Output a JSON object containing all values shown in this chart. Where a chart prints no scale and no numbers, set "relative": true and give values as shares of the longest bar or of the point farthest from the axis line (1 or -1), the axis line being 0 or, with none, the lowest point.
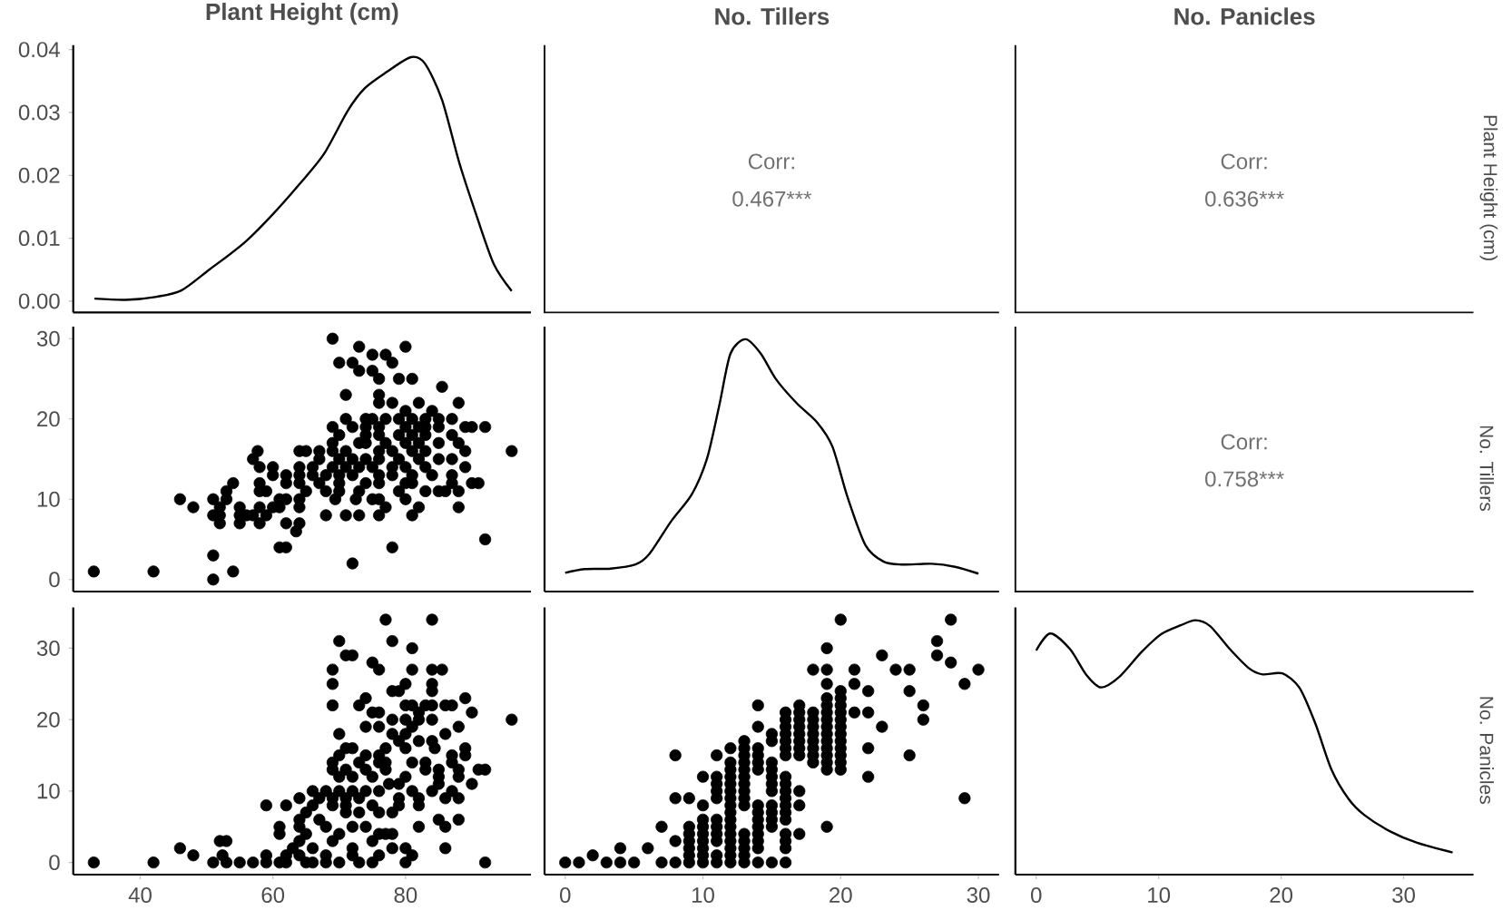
{
  "chart_data": [
    {
      "type": "line",
      "title": "Plant Height (cm)",
      "color": "#000000",
      "xlim": [
        29.9,
        98.9
      ],
      "ylim": [
        -0.0018,
        0.0407
      ],
      "tick_labels": "y",
      "yticks": [
        {
          "value": 0,
          "label": "0.00"
        },
        0.01,
        0.02,
        0.03,
        0.04
      ],
      "x": [
        33.1,
        37.8,
        42.5,
        46.2,
        50.4,
        55.6,
        59.8,
        64.0,
        67.7,
        71.3,
        73.9,
        77.1,
        80.8,
        82.9,
        85.5,
        88.1,
        90.7,
        93.3,
        96.0
      ],
      "values": [
        0.0004,
        0.0002,
        0.0007,
        0.0017,
        0.005,
        0.0092,
        0.0136,
        0.0186,
        0.0234,
        0.0303,
        0.0339,
        0.0364,
        0.0388,
        0.0378,
        0.032,
        0.022,
        0.0136,
        0.0059,
        0.0016
      ]
    },
    {
      "type": "other",
      "title": "No. Tillers",
      "annotations": [
        "Corr:",
        "0.467***"
      ]
    },
    {
      "type": "other",
      "title": "No. Panicles",
      "annotations": [
        "Corr:",
        "0.636***"
      ],
      "y2label": "Plant Height (cm)"
    },
    {
      "type": "scatter",
      "color": "#000000",
      "marker": "circle",
      "xlim": [
        29.9,
        98.9
      ],
      "ylim": [
        -1.5,
        31.5
      ],
      "yticks": [
        0,
        10,
        20,
        30
      ],
      "tick_labels": "y",
      "x": [
        69,
        73,
        80,
        75,
        77,
        70,
        72,
        78,
        73,
        75,
        76,
        79,
        81,
        85.5,
        71,
        76,
        76,
        78,
        82,
        88,
        80,
        84,
        71,
        74,
        75,
        77,
        79,
        81,
        83,
        85,
        87,
        69,
        72,
        74,
        76,
        80,
        82,
        83,
        85,
        89,
        90,
        92,
        70,
        74,
        76,
        79,
        81,
        83,
        87,
        69,
        73,
        74,
        77,
        80,
        82,
        85,
        88,
        57.7,
        64,
        65,
        67,
        69,
        71,
        76,
        78,
        81,
        83,
        89,
        96,
        57,
        67,
        70,
        72,
        74,
        76,
        79,
        82,
        85,
        87,
        58,
        60,
        64,
        66,
        69,
        71,
        73,
        75,
        78,
        80,
        83,
        89,
        60,
        62,
        64,
        66,
        68,
        70,
        72,
        76,
        78,
        81,
        84,
        87,
        54,
        58,
        62,
        64,
        67,
        70,
        74,
        76,
        80,
        81,
        87,
        90,
        91,
        53,
        58,
        59,
        65,
        68,
        70,
        73,
        79,
        83,
        85,
        86,
        88,
        46,
        51,
        53,
        61,
        62,
        64,
        69.4,
        72.5,
        75,
        76,
        80,
        48,
        52,
        55,
        58,
        60,
        61,
        64,
        77,
        82,
        88,
        51,
        52,
        55,
        56,
        57,
        59,
        68,
        71,
        73,
        76,
        81,
        52,
        55,
        58,
        62,
        64,
        63.5,
        92,
        61,
        62,
        78,
        51,
        72,
        33,
        42,
        54,
        51
      ],
      "values": [
        30,
        29,
        29,
        28,
        28,
        27,
        27,
        27,
        26,
        26,
        25,
        25,
        25,
        24,
        23,
        23,
        22,
        22,
        22,
        22,
        21,
        21,
        20,
        20,
        20,
        20,
        20,
        20,
        20,
        20,
        20,
        19,
        19,
        19,
        19,
        19,
        19,
        19,
        19,
        19,
        19,
        19,
        18,
        18,
        18,
        18,
        18,
        18,
        18,
        17,
        17,
        17,
        17,
        17,
        17,
        17,
        17,
        16,
        16,
        16,
        16,
        16,
        16,
        16,
        16,
        16,
        16,
        16,
        16,
        15,
        15,
        15,
        15,
        15,
        15,
        15,
        15,
        15,
        15,
        14,
        14,
        14,
        14,
        14,
        14,
        14,
        14,
        14,
        14,
        14,
        14,
        13,
        13,
        13,
        13,
        13,
        13,
        13,
        13,
        13,
        13,
        13,
        13,
        12,
        12,
        12,
        12,
        12,
        12,
        12,
        12,
        12,
        12,
        12,
        12,
        12,
        11,
        11,
        11,
        11,
        11,
        11,
        11,
        11,
        11,
        11,
        11,
        11,
        10,
        10,
        10,
        10,
        10,
        10,
        10,
        10,
        10,
        10,
        10,
        9,
        9,
        9,
        9,
        9,
        9,
        9,
        9,
        9,
        9,
        8,
        8,
        8,
        8,
        8,
        8,
        8,
        8,
        8,
        8,
        8,
        7,
        7,
        7,
        7,
        7,
        6,
        5,
        4,
        4,
        4,
        3,
        2,
        1,
        1,
        1,
        0
      ]
    },
    {
      "type": "line",
      "relative": true,
      "color": "#000000",
      "xlim": [
        -1.5,
        31.5
      ],
      "tick_labels": false,
      "x": [
        0,
        1.4,
        3.3,
        5.1,
        6.1,
        7.7,
        9.2,
        10.3,
        11.2,
        12.0,
        13.1,
        14.2,
        15.3,
        16.8,
        18.3,
        19.4,
        20.5,
        21.8,
        23.1,
        24.4,
        26.6,
        28.3,
        30.0
      ],
      "values": [
        0.074,
        0.089,
        0.091,
        0.107,
        0.148,
        0.279,
        0.386,
        0.528,
        0.741,
        0.943,
        1.0,
        0.943,
        0.842,
        0.747,
        0.67,
        0.575,
        0.374,
        0.184,
        0.119,
        0.107,
        0.11,
        0.098,
        0.071
      ]
    },
    {
      "type": "other",
      "annotations": [
        "Corr:",
        "0.758***"
      ],
      "y2label": "No. Tillers"
    },
    {
      "type": "scatter",
      "color": "#000000",
      "marker": "circle",
      "xlim": [
        29.9,
        98.9
      ],
      "ylim": [
        -1.7,
        35.7
      ],
      "xticks": [
        40,
        60,
        80
      ],
      "yticks": [
        0,
        10,
        20,
        30
      ],
      "x": [
        77,
        84,
        70,
        78,
        81,
        71,
        72,
        75,
        69,
        76,
        81,
        84,
        85.5,
        69,
        80,
        84,
        78,
        79,
        84,
        74,
        89,
        69,
        73,
        80,
        81,
        83,
        84,
        86,
        87,
        75,
        76,
        82,
        90,
        78,
        80,
        82,
        84,
        96,
        74,
        76,
        81,
        88,
        70,
        78,
        80,
        86,
        79,
        82,
        84,
        71,
        72,
        77,
        80,
        84.4,
        89,
        70,
        74,
        76,
        87,
        89,
        69,
        73,
        76,
        77,
        81,
        83,
        87,
        69,
        71,
        74,
        77,
        83,
        85,
        88,
        91,
        92,
        70,
        72,
        75,
        80,
        85,
        88,
        77.5,
        79,
        85,
        90,
        66,
        68,
        70,
        72,
        74,
        76,
        81,
        84,
        87,
        64,
        67,
        69,
        71,
        73,
        79,
        82,
        86,
        88,
        59,
        62,
        66,
        69,
        71,
        75,
        79,
        82,
        65,
        71,
        73,
        76,
        78,
        64,
        67,
        85,
        88,
        61,
        64,
        68,
        72,
        74,
        82,
        86,
        61,
        65,
        70,
        76,
        77,
        78,
        52,
        53,
        64,
        69,
        75,
        46,
        63,
        66,
        72,
        78,
        80,
        86,
        48,
        52.4,
        59,
        62,
        64,
        68,
        72,
        76,
        81,
        33,
        42,
        51,
        53,
        55,
        57,
        59,
        61,
        62,
        65,
        66,
        68,
        70,
        73,
        75,
        80,
        92
      ],
      "values": [
        34,
        34,
        31,
        31,
        30,
        29,
        29,
        28,
        27,
        27,
        27,
        27,
        27,
        25,
        25,
        25,
        24,
        24,
        24,
        23,
        23,
        22,
        22,
        22,
        22,
        22,
        22,
        22,
        22,
        21,
        21,
        21,
        21,
        20,
        20,
        20,
        20,
        20,
        19,
        19,
        19,
        19,
        18,
        18,
        18,
        18,
        17,
        17,
        17,
        16,
        16,
        16,
        16,
        16,
        16,
        15,
        15,
        15,
        15,
        15,
        14,
        14,
        14,
        14,
        14,
        14,
        14,
        13,
        13,
        13,
        13,
        13,
        13,
        13,
        13,
        13,
        12,
        12,
        12,
        12,
        12,
        12,
        11,
        11,
        11,
        11,
        10,
        10,
        10,
        10,
        10,
        10,
        10,
        10,
        10,
        9,
        9,
        9,
        9,
        9,
        9,
        9,
        9,
        9,
        8,
        8,
        8,
        8,
        8,
        8,
        8,
        8,
        7,
        7,
        7,
        7,
        7,
        6,
        6,
        6,
        6,
        5,
        5,
        5,
        5,
        5,
        5,
        5,
        4,
        4,
        4,
        4,
        4,
        4,
        3,
        3,
        3,
        3,
        3,
        2,
        2,
        2,
        2,
        2,
        2,
        2,
        1,
        1,
        1,
        1,
        1,
        1,
        1,
        1,
        1,
        0,
        0,
        0,
        0,
        0,
        0,
        0,
        0,
        0,
        0,
        0,
        0,
        0,
        0,
        0,
        0,
        0
      ]
    },
    {
      "type": "scatter",
      "color": "#000000",
      "marker": "circle",
      "xlim": [
        -1.5,
        31.5
      ],
      "ylim": [
        -1.7,
        35.7
      ],
      "xticks": [
        0,
        10,
        20,
        30
      ],
      "tick_labels": "x",
      "x": [
        0,
        1,
        2,
        3,
        4,
        4,
        5,
        6,
        7,
        7,
        8,
        8,
        8,
        8,
        9,
        9,
        9,
        9,
        9,
        9,
        9,
        10,
        10,
        10,
        10,
        10,
        10,
        10,
        10,
        10,
        11,
        11,
        11,
        11,
        11,
        11,
        11,
        11,
        11,
        11,
        11,
        12,
        12,
        12,
        12,
        12,
        12,
        12,
        12,
        12,
        12,
        12,
        12,
        12,
        12,
        12,
        12,
        13,
        13,
        13,
        13,
        13,
        13,
        13,
        13,
        13,
        13,
        13,
        13,
        13,
        13,
        13,
        14,
        14,
        14,
        14,
        14,
        14,
        14,
        14,
        14,
        14,
        14,
        14,
        14,
        14,
        15,
        15,
        15,
        15,
        15,
        15,
        15,
        15,
        15,
        15,
        15,
        15,
        16,
        16,
        16,
        16,
        16,
        16,
        16,
        16,
        16,
        16,
        16,
        16,
        16,
        16,
        16,
        16,
        16,
        16,
        17,
        17,
        17,
        17,
        17,
        17,
        17,
        17,
        17,
        17,
        17,
        18,
        18,
        18,
        18,
        18,
        18,
        18,
        18,
        18,
        19,
        19,
        19,
        19,
        19,
        19,
        19,
        19,
        19,
        19,
        19,
        19,
        19,
        19,
        19,
        20,
        20,
        20,
        20,
        20,
        20,
        20,
        20,
        20,
        20,
        20,
        20,
        20,
        21,
        21,
        21,
        22,
        22,
        22,
        22,
        23,
        23,
        24,
        25,
        25,
        25,
        26,
        26,
        27,
        27,
        28,
        28,
        29,
        29,
        30
      ],
      "values": [
        0,
        0,
        1,
        0,
        0,
        2,
        0,
        2,
        0,
        5,
        0,
        3,
        9,
        15,
        0,
        1,
        2,
        3,
        4,
        5,
        9,
        0,
        1,
        2,
        3,
        4,
        5,
        6,
        8,
        12,
        0,
        1,
        3,
        4,
        5,
        6,
        9,
        10,
        11,
        12,
        15,
        0,
        1,
        2,
        3,
        4,
        5,
        6,
        7,
        8,
        9,
        10,
        11,
        12,
        13,
        14,
        16,
        0,
        1,
        2,
        3,
        4,
        8,
        9,
        10,
        11,
        12,
        13,
        14,
        15,
        16,
        17,
        0,
        2,
        3,
        4,
        5,
        6,
        7,
        8,
        13,
        14,
        15,
        16,
        19,
        22,
        0,
        5,
        6,
        7,
        8,
        10,
        11,
        12,
        13,
        14,
        17,
        18,
        0,
        2,
        3,
        4,
        6,
        7,
        8,
        9,
        10,
        11,
        12,
        15,
        16,
        17,
        18,
        19,
        20,
        21,
        4,
        8,
        10,
        15,
        16,
        17,
        18,
        19,
        20,
        21,
        22,
        14,
        15,
        16,
        17,
        18,
        19,
        20,
        21,
        27,
        5,
        13,
        14,
        15,
        16,
        17,
        18,
        19,
        20,
        21,
        22,
        23,
        25,
        27,
        30,
        13,
        14,
        15,
        16,
        17,
        18,
        19,
        20,
        21,
        22,
        23,
        24,
        34,
        21,
        25,
        27,
        12,
        16,
        21,
        24,
        19,
        29,
        27,
        15,
        24,
        27,
        20,
        22,
        29,
        31,
        28,
        34,
        9,
        25,
        27
      ]
    },
    {
      "type": "line",
      "relative": true,
      "color": "#000000",
      "xlim": [
        -1.7,
        35.7
      ],
      "xticks": [
        0,
        10,
        20,
        30
      ],
      "tick_labels": "x",
      "y2label": "No. Panicles",
      "x": [
        0,
        1.15,
        2.75,
        4.1,
        5.3,
        6.8,
        8.6,
        10.2,
        11.8,
        13.0,
        14.2,
        15.8,
        17.4,
        18.5,
        20.1,
        21.5,
        22.8,
        24.1,
        25.5,
        26.8,
        28.9,
        31.1,
        34.0
      ],
      "values": [
        0.881,
        0.948,
        0.887,
        0.785,
        0.736,
        0.778,
        0.875,
        0.945,
        0.98,
        1.0,
        0.977,
        0.887,
        0.81,
        0.787,
        0.791,
        0.734,
        0.593,
        0.414,
        0.298,
        0.234,
        0.17,
        0.125,
        0.087
      ]
    }
  ]
}
